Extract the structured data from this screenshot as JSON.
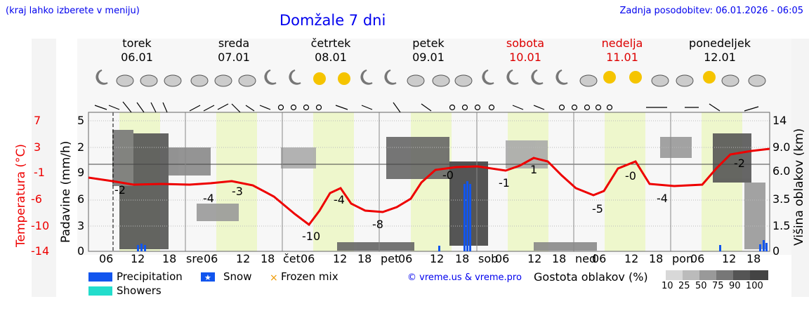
{
  "header": {
    "region_hint": "(kraj lahko izberete v meniju)",
    "title": "Domžale 7 dni",
    "last_update": "Zadnja posodobitev: 06.01.2026 - 06:05"
  },
  "days": [
    {
      "name": "torek",
      "date": "06.01",
      "weekend": false
    },
    {
      "name": "sreda",
      "date": "07.01",
      "weekend": false
    },
    {
      "name": "četrtek",
      "date": "08.01",
      "weekend": false
    },
    {
      "name": "petek",
      "date": "09.01",
      "weekend": false
    },
    {
      "name": "sobota",
      "date": "10.01",
      "weekend": true
    },
    {
      "name": "nedelja",
      "date": "11.01",
      "weekend": true
    },
    {
      "name": "ponedeljek",
      "date": "12.01",
      "weekend": false
    }
  ],
  "axes": {
    "left_outer_label": "Temperatura (°C)",
    "left_inner_label": "Padavine (mm/h)",
    "right_label": "Višina oblakov (km)",
    "temp_ticks": [
      "7",
      "3",
      "-1",
      "-6",
      "-10",
      "-14"
    ],
    "precip_ticks": [
      "5",
      "2",
      "9",
      "6",
      "3",
      "0"
    ],
    "cloud_ticks": [
      "14",
      "9.0",
      "6.0",
      "5.0",
      "3.5",
      "1.5",
      "0"
    ],
    "x_ticks": [
      "06",
      "12",
      "18",
      "sre",
      "06",
      "12",
      "18",
      "čet",
      "06",
      "12",
      "18",
      "pet",
      "06",
      "12",
      "18",
      "sob",
      "06",
      "12",
      "18",
      "ned",
      "06",
      "12",
      "18",
      "pon",
      "06",
      "12",
      "18"
    ]
  },
  "legend": {
    "precipitation": "Precipitation",
    "snow": "Snow",
    "frozen_mix": "Frozen mix",
    "showers": "Showers",
    "credit": "© vreme.us & vreme.pro",
    "cloud_density_label": "Gostota oblakov (%)",
    "cloud_density_scale": [
      "10",
      "25",
      "50",
      "75",
      "90",
      "100"
    ],
    "colors": {
      "precipitation": "#1155ee",
      "showers": "#22ddcc",
      "frozen": "#ee9900",
      "temp_line": "#ee0000"
    }
  },
  "chart_data": {
    "type": "line",
    "title": "Domžale 7 dni",
    "xlabel": "",
    "ylabel": "Temperatura (°C)",
    "ylim": [
      -14,
      7
    ],
    "categories": [
      "06.01 06h",
      "06.01 12h",
      "06.01 18h",
      "07.01 00h",
      "07.01 06h",
      "07.01 12h",
      "07.01 18h",
      "08.01 00h",
      "08.01 06h",
      "08.01 12h",
      "08.01 18h",
      "09.01 00h",
      "09.01 06h",
      "09.01 12h",
      "09.01 18h",
      "10.01 00h",
      "10.01 06h",
      "10.01 12h",
      "10.01 18h",
      "11.01 00h",
      "11.01 06h",
      "11.01 12h",
      "11.01 18h",
      "12.01 00h",
      "12.01 06h",
      "12.01 12h",
      "12.01 18h"
    ],
    "series": [
      {
        "name": "Temperature (°C)",
        "values": [
          -2,
          -2,
          -2,
          -3,
          -4,
          -3,
          -4,
          -8,
          -10,
          -4,
          -8,
          -8,
          -6,
          -1,
          0,
          0,
          -1,
          1,
          -1,
          -3,
          -5,
          0,
          -4,
          -4,
          -3,
          -2,
          -1
        ]
      },
      {
        "name": "Precipitation (mm/h)",
        "values": [
          0,
          0.3,
          0.2,
          0,
          0,
          0,
          0,
          0,
          0,
          0,
          0,
          0,
          0,
          0.1,
          0.2,
          8,
          0,
          0,
          0,
          0,
          0,
          0,
          0,
          0,
          0,
          0.2,
          1
        ]
      }
    ],
    "annotations": [
      "-2",
      "-3",
      "-4",
      "-10",
      "-4",
      "-8",
      "-0",
      "-1",
      "1",
      "-5",
      "-0",
      "-4",
      "-2"
    ],
    "grid": true,
    "legend_position": "bottom"
  }
}
